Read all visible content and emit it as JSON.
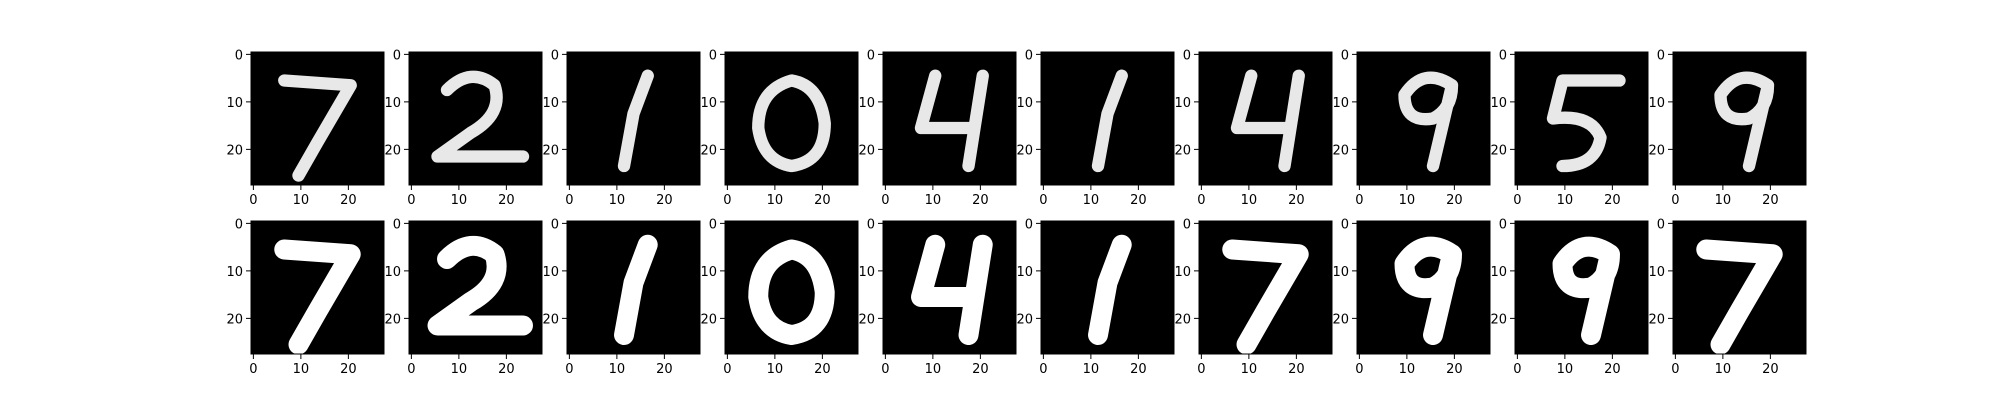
{
  "figure": {
    "description_visible": false
  },
  "colors": {
    "background": "#ffffff",
    "image_background": "#000000",
    "stroke_original": "#e8e8e8",
    "stroke_reconstruction": "#ffffff",
    "axis": "#000000"
  },
  "chart_data": {
    "type": "heatmap",
    "title": "",
    "layout": "2 rows x 10 columns of 28x28 grayscale image panels",
    "rows": [
      {
        "row": "top",
        "digits_shown": [
          "7",
          "2",
          "1",
          "0",
          "4",
          "1",
          "4",
          "9",
          "5",
          "9"
        ]
      },
      {
        "row": "bottom",
        "digits_shown": [
          "7",
          "2",
          "1",
          "0",
          "4",
          "1",
          "7",
          "9",
          "9",
          "7"
        ]
      }
    ],
    "image_size": [
      28,
      28
    ],
    "xlim": [
      -0.5,
      27.5
    ],
    "ylim": [
      27.5,
      -0.5
    ],
    "xticks": [
      0,
      10,
      20
    ],
    "yticks": [
      0,
      10,
      20
    ],
    "xtick_labels": [
      "0",
      "10",
      "20"
    ],
    "ytick_labels": [
      "0",
      "10",
      "20"
    ],
    "grid": false,
    "legend": "none",
    "xlabel": "",
    "ylabel": ""
  }
}
